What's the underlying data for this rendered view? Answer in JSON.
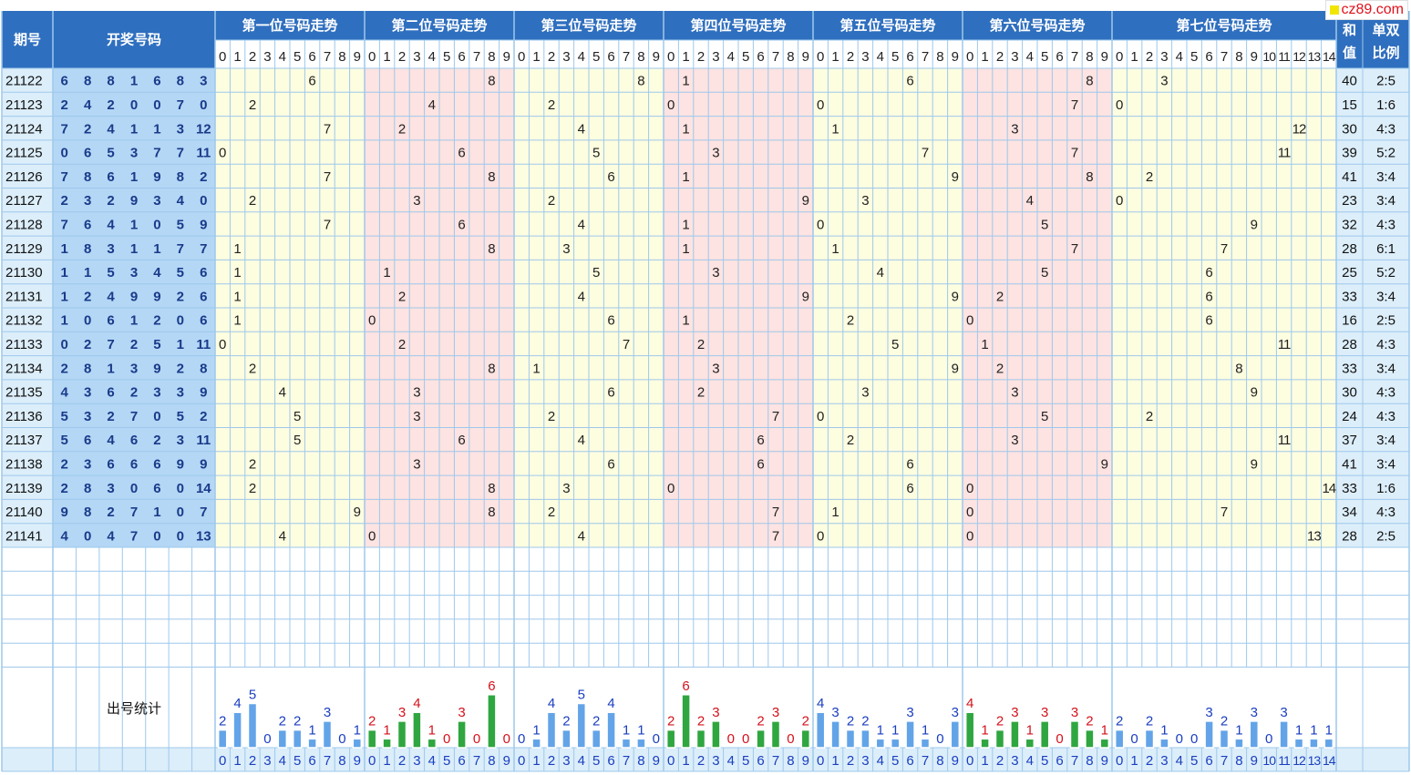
{
  "header": {
    "period_label": "期号",
    "draw_label": "开奖号码",
    "sum_label": [
      "和",
      "值"
    ],
    "ratio_label": [
      "单双",
      "比例"
    ]
  },
  "positions": [
    {
      "title": "第一位号码走势",
      "digits": [
        "0",
        "1",
        "2",
        "3",
        "4",
        "5",
        "6",
        "7",
        "8",
        "9"
      ],
      "background": "#fdfde0"
    },
    {
      "title": "第二位号码走势",
      "digits": [
        "0",
        "1",
        "2",
        "3",
        "4",
        "5",
        "6",
        "7",
        "8",
        "9"
      ],
      "background": "#fde3e1"
    },
    {
      "title": "第三位号码走势",
      "digits": [
        "0",
        "1",
        "2",
        "3",
        "4",
        "5",
        "6",
        "7",
        "8",
        "9"
      ],
      "background": "#fdfde0"
    },
    {
      "title": "第四位号码走势",
      "digits": [
        "0",
        "1",
        "2",
        "3",
        "4",
        "5",
        "6",
        "7",
        "8",
        "9"
      ],
      "background": "#fde3e1"
    },
    {
      "title": "第五位号码走势",
      "digits": [
        "0",
        "1",
        "2",
        "3",
        "4",
        "5",
        "6",
        "7",
        "8",
        "9"
      ],
      "background": "#fdfde0"
    },
    {
      "title": "第六位号码走势",
      "digits": [
        "0",
        "1",
        "2",
        "3",
        "4",
        "5",
        "6",
        "7",
        "8",
        "9"
      ],
      "background": "#fde3e1"
    },
    {
      "title": "第七位号码走势",
      "digits": [
        "0",
        "1",
        "2",
        "3",
        "4",
        "5",
        "6",
        "7",
        "8",
        "9",
        "10",
        "11",
        "12",
        "13",
        "14"
      ],
      "background": "#fdfde0"
    }
  ],
  "draws": [
    {
      "period": "21122",
      "numbers": [
        "6",
        "8",
        "8",
        "1",
        "6",
        "8",
        "3"
      ],
      "sum": "40",
      "ratio": "2:5"
    },
    {
      "period": "21123",
      "numbers": [
        "2",
        "4",
        "2",
        "0",
        "0",
        "7",
        "0"
      ],
      "sum": "15",
      "ratio": "1:6"
    },
    {
      "period": "21124",
      "numbers": [
        "7",
        "2",
        "4",
        "1",
        "1",
        "3",
        "12"
      ],
      "sum": "30",
      "ratio": "4:3"
    },
    {
      "period": "21125",
      "numbers": [
        "0",
        "6",
        "5",
        "3",
        "7",
        "7",
        "11"
      ],
      "sum": "39",
      "ratio": "5:2"
    },
    {
      "period": "21126",
      "numbers": [
        "7",
        "8",
        "6",
        "1",
        "9",
        "8",
        "2"
      ],
      "sum": "41",
      "ratio": "3:4"
    },
    {
      "period": "21127",
      "numbers": [
        "2",
        "3",
        "2",
        "9",
        "3",
        "4",
        "0"
      ],
      "sum": "23",
      "ratio": "3:4"
    },
    {
      "period": "21128",
      "numbers": [
        "7",
        "6",
        "4",
        "1",
        "0",
        "5",
        "9"
      ],
      "sum": "32",
      "ratio": "4:3"
    },
    {
      "period": "21129",
      "numbers": [
        "1",
        "8",
        "3",
        "1",
        "1",
        "7",
        "7"
      ],
      "sum": "28",
      "ratio": "6:1"
    },
    {
      "period": "21130",
      "numbers": [
        "1",
        "1",
        "5",
        "3",
        "4",
        "5",
        "6"
      ],
      "sum": "25",
      "ratio": "5:2"
    },
    {
      "period": "21131",
      "numbers": [
        "1",
        "2",
        "4",
        "9",
        "9",
        "2",
        "6"
      ],
      "sum": "33",
      "ratio": "3:4"
    },
    {
      "period": "21132",
      "numbers": [
        "1",
        "0",
        "6",
        "1",
        "2",
        "0",
        "6"
      ],
      "sum": "16",
      "ratio": "2:5"
    },
    {
      "period": "21133",
      "numbers": [
        "0",
        "2",
        "7",
        "2",
        "5",
        "1",
        "11"
      ],
      "sum": "28",
      "ratio": "4:3"
    },
    {
      "period": "21134",
      "numbers": [
        "2",
        "8",
        "1",
        "3",
        "9",
        "2",
        "8"
      ],
      "sum": "33",
      "ratio": "3:4"
    },
    {
      "period": "21135",
      "numbers": [
        "4",
        "3",
        "6",
        "2",
        "3",
        "3",
        "9"
      ],
      "sum": "30",
      "ratio": "4:3"
    },
    {
      "period": "21136",
      "numbers": [
        "5",
        "3",
        "2",
        "7",
        "0",
        "5",
        "2"
      ],
      "sum": "24",
      "ratio": "4:3"
    },
    {
      "period": "21137",
      "numbers": [
        "5",
        "6",
        "4",
        "6",
        "2",
        "3",
        "11"
      ],
      "sum": "37",
      "ratio": "3:4"
    },
    {
      "period": "21138",
      "numbers": [
        "2",
        "3",
        "6",
        "6",
        "6",
        "9",
        "9"
      ],
      "sum": "41",
      "ratio": "3:4"
    },
    {
      "period": "21139",
      "numbers": [
        "2",
        "8",
        "3",
        "0",
        "6",
        "0",
        "14"
      ],
      "sum": "33",
      "ratio": "1:6"
    },
    {
      "period": "21140",
      "numbers": [
        "9",
        "8",
        "2",
        "7",
        "1",
        "0",
        "7"
      ],
      "sum": "34",
      "ratio": "4:3"
    },
    {
      "period": "21141",
      "numbers": [
        "4",
        "0",
        "4",
        "7",
        "0",
        "0",
        "13"
      ],
      "sum": "28",
      "ratio": "2:5"
    }
  ],
  "stats": {
    "label": "出号统计",
    "counts": [
      [
        2,
        4,
        5,
        0,
        2,
        2,
        1,
        3,
        0,
        1
      ],
      [
        2,
        1,
        3,
        4,
        1,
        0,
        3,
        0,
        6,
        0
      ],
      [
        0,
        1,
        4,
        2,
        5,
        2,
        4,
        1,
        1,
        0
      ],
      [
        2,
        6,
        2,
        3,
        0,
        0,
        2,
        3,
        0,
        2
      ],
      [
        4,
        3,
        2,
        2,
        1,
        1,
        3,
        1,
        0,
        3
      ],
      [
        4,
        1,
        2,
        3,
        1,
        3,
        0,
        3,
        2,
        1
      ],
      [
        2,
        0,
        2,
        1,
        0,
        0,
        3,
        2,
        1,
        3,
        0,
        3,
        1,
        1,
        1
      ]
    ],
    "bar_colors": {
      "blue": "#63a4e8",
      "green": "#2fa640"
    },
    "label_colors": {
      "blue": "#1a3ec0",
      "red": "#d4121c"
    }
  },
  "colors": {
    "header_blue": "#2f6fbf",
    "period_bg": "#dceefa",
    "number_bg": "#b3d7f5",
    "grid_line": "#9ec8ec",
    "number_text": "#1a3a8a",
    "digit_text": "#222222"
  },
  "watermark": {
    "text": "cz89.com",
    "color": "#e0111b"
  }
}
